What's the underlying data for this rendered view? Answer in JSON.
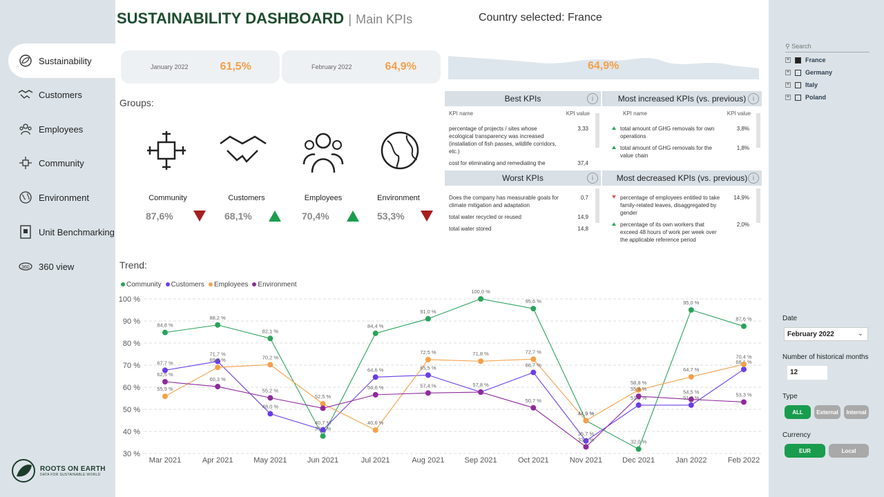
{
  "header": {
    "title": "SUSTAINABILITY DASHBOARD",
    "separator": "|",
    "subtitle": "Main KPIs",
    "country": "Country selected: France"
  },
  "nav": [
    {
      "label": "Sustainability",
      "icon": "leaf-globe-icon"
    },
    {
      "label": "Customers",
      "icon": "handshake-icon"
    },
    {
      "label": "Employees",
      "icon": "people-icon"
    },
    {
      "label": "Community",
      "icon": "community-icon"
    },
    {
      "label": "Environment",
      "icon": "earth-icon"
    },
    {
      "label": "Unit Benchmarking",
      "icon": "building-icon"
    },
    {
      "label": "360 view",
      "icon": "360-icon"
    }
  ],
  "logo": {
    "name": "ROOTS ON EARTH",
    "tagline": "DATA FOR SUSTAINABLE WORLD"
  },
  "cards": [
    {
      "month": "January 2022",
      "value": "61,5%"
    },
    {
      "month": "February 2022",
      "value": "64,9%"
    },
    {
      "month": "",
      "value": "64,9%"
    }
  ],
  "groups_label": "Groups:",
  "groups": [
    {
      "name": "Community",
      "value": "87,6%",
      "trend": "down"
    },
    {
      "name": "Customers",
      "value": "68,1%",
      "trend": "up"
    },
    {
      "name": "Employees",
      "value": "70,4%",
      "trend": "up"
    },
    {
      "name": "Environment",
      "value": "53,3%",
      "trend": "down"
    }
  ],
  "best": {
    "title": "Best KPIs",
    "col1": "KPI name",
    "col2": "KPI value",
    "rows": [
      {
        "name": "percentage of projects / sites whose ecological transparency was increased (installation of fish passes, wildlife corridors, etc.)",
        "value": "3,33"
      },
      {
        "name": "cost for eliminating and remediating the",
        "value": "37,4"
      }
    ]
  },
  "increased": {
    "title": "Most increased KPIs (vs. previous)",
    "col1": "KPI name",
    "col2": "KPI value",
    "rows": [
      {
        "name": "total amount of GHG removals for own operations",
        "value": "3,8%"
      },
      {
        "name": "total amount of GHG removals for the value chain",
        "value": "1,8%"
      }
    ]
  },
  "worst": {
    "title": "Worst KPIs",
    "rows": [
      {
        "name": "Does the company has measurable goals for climate mitigation and adaptation",
        "value": "0,7"
      },
      {
        "name": "total water recycled or reused",
        "value": "14,9"
      },
      {
        "name": "total water stored",
        "value": "14,8"
      }
    ]
  },
  "decreased": {
    "title": "Most decreased KPIs (vs. previous)",
    "rows": [
      {
        "name": "percentage of employees entitled to take family-related leaves, disaggregated by gender",
        "value": "14,9%"
      },
      {
        "name": "percentage of its own workers that exceed 48 hours of work per week over the applicable reference period",
        "value": "2,0%"
      }
    ]
  },
  "trend_label": "Trend:",
  "chart_data": {
    "type": "line",
    "categories": [
      "Mar 2021",
      "Apr 2021",
      "May 2021",
      "Jun 2021",
      "Jul 2021",
      "Aug 2021",
      "Sep 2021",
      "Oct 2021",
      "Nov 2021",
      "Dec 2021",
      "Jan 2022",
      "Feb 2022"
    ],
    "ylim": [
      30,
      100
    ],
    "yticks": [
      "100 %",
      "90 %",
      "80 %",
      "70 %",
      "60 %",
      "50 %",
      "40 %",
      "30 %"
    ],
    "series": [
      {
        "name": "Community",
        "color": "#2aa35a",
        "values": [
          84.8,
          88.2,
          82.1,
          37.9,
          84.4,
          91.0,
          100.0,
          95.6,
          44.9,
          32.0,
          95.0,
          87.6
        ],
        "labels": [
          "84,8 %",
          "88,2 %",
          "82,1 %",
          "37,9 %",
          "84,4 %",
          "91,0 %",
          "100,0 %",
          "95,6 %",
          "44,9 %",
          "32,0 %",
          "95,0 %",
          "87,6 %"
        ]
      },
      {
        "name": "Customers",
        "color": "#6a3de8",
        "values": [
          67.7,
          71.7,
          48.0,
          40.7,
          64.6,
          65.5,
          57.8,
          66.7,
          35.7,
          51.9,
          51.9,
          68.1
        ],
        "labels": [
          "67,7 %",
          "71,7 %",
          "48,0 %",
          "40,7 %",
          "64,6 %",
          "65,5 %",
          "57,8 %",
          "66,7 %",
          "35,7 %",
          "51,9 %",
          "51,9 %",
          "68,1 %"
        ]
      },
      {
        "name": "Employees",
        "color": "#f4a04a",
        "values": [
          55.9,
          69.0,
          70.2,
          52.5,
          40.6,
          72.5,
          71.8,
          72.7,
          44.9,
          58.8,
          64.7,
          70.4
        ],
        "labels": [
          "55,9 %",
          "69,0 %",
          "70,2 %",
          "52,5 %",
          "40,6 %",
          "72,5 %",
          "71,8 %",
          "72,7 %",
          "44,9 %",
          "58,8 %",
          "64,7 %",
          "70,4 %"
        ]
      },
      {
        "name": "Environment",
        "color": "#8e2a9c",
        "values": [
          62.5,
          60.3,
          55.2,
          50.5,
          56.6,
          57.4,
          57.8,
          50.7,
          33.0,
          55.9,
          54.5,
          53.3
        ],
        "labels": [
          "62,5 %",
          "60,3 %",
          "55,2 %",
          "",
          "56,6 %",
          "57,4 %",
          "",
          "50,7 %",
          "33,0 %",
          "55,9 %",
          "54,5 %",
          "53,3 %"
        ]
      }
    ]
  },
  "filters": {
    "search_placeholder": "Search",
    "countries": [
      "France",
      "Germany",
      "Italy",
      "Poland"
    ],
    "date_label": "Date",
    "date_value": "February 2022",
    "months_label": "Number of historical months",
    "months_value": "12",
    "type_label": "Type",
    "type_options": [
      "ALL",
      "External",
      "Internal"
    ],
    "currency_label": "Currency",
    "currency_options": [
      "EUR",
      "Local"
    ]
  },
  "colors": {
    "accent": "#1a9c4e",
    "brand": "#1d4d2e",
    "kpi": "#f4a04a"
  }
}
